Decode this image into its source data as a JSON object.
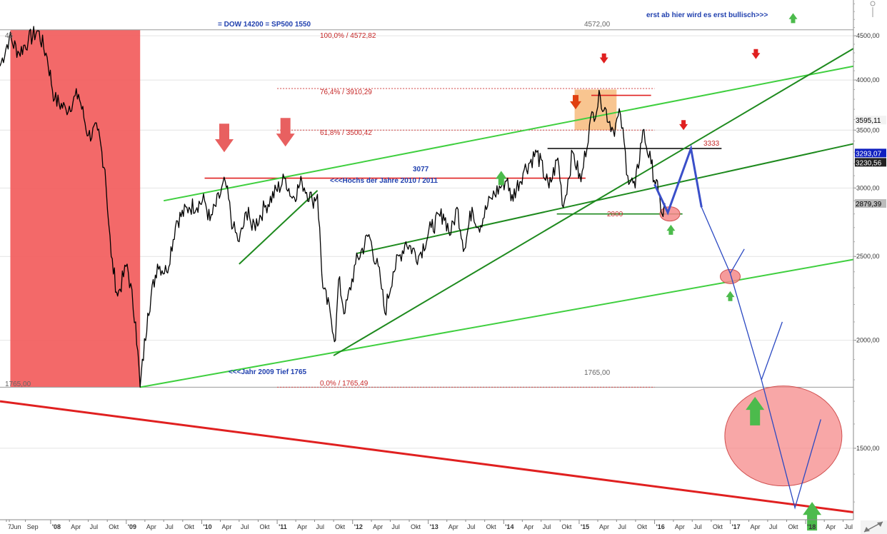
{
  "chart_data": {
    "type": "line",
    "instrument": "",
    "x_axis": {
      "ticks": [
        {
          "label": "7",
          "date": "2007-06-01"
        },
        {
          "label": "Jun",
          "date": "2007-06-15"
        },
        {
          "label": "Sep",
          "date": "2007-09-01"
        },
        {
          "label": "'08",
          "date": "2008-01-01"
        },
        {
          "label": "Apr",
          "date": "2008-04-01"
        },
        {
          "label": "Jul",
          "date": "2008-07-01"
        },
        {
          "label": "Okt",
          "date": "2008-10-01"
        },
        {
          "label": "'09",
          "date": "2009-01-01"
        },
        {
          "label": "Apr",
          "date": "2009-04-01"
        },
        {
          "label": "Jul",
          "date": "2009-07-01"
        },
        {
          "label": "Okt",
          "date": "2009-10-01"
        },
        {
          "label": "'10",
          "date": "2010-01-01"
        },
        {
          "label": "Apr",
          "date": "2010-04-01"
        },
        {
          "label": "Jul",
          "date": "2010-07-01"
        },
        {
          "label": "Okt",
          "date": "2010-10-01"
        },
        {
          "label": "'11",
          "date": "2011-01-01"
        },
        {
          "label": "Apr",
          "date": "2011-04-01"
        },
        {
          "label": "Jul",
          "date": "2011-07-01"
        },
        {
          "label": "Okt",
          "date": "2011-10-01"
        },
        {
          "label": "'12",
          "date": "2012-01-01"
        },
        {
          "label": "Apr",
          "date": "2012-04-01"
        },
        {
          "label": "Jul",
          "date": "2012-07-01"
        },
        {
          "label": "Okt",
          "date": "2012-10-01"
        },
        {
          "label": "'13",
          "date": "2013-01-01"
        },
        {
          "label": "Apr",
          "date": "2013-04-01"
        },
        {
          "label": "Jul",
          "date": "2013-07-01"
        },
        {
          "label": "Okt",
          "date": "2013-10-01"
        },
        {
          "label": "'14",
          "date": "2014-01-01"
        },
        {
          "label": "Apr",
          "date": "2014-04-01"
        },
        {
          "label": "Jul",
          "date": "2014-07-01"
        },
        {
          "label": "Okt",
          "date": "2014-10-01"
        },
        {
          "label": "'15",
          "date": "2015-01-01"
        },
        {
          "label": "Apr",
          "date": "2015-04-01"
        },
        {
          "label": "Jul",
          "date": "2015-07-01"
        },
        {
          "label": "Okt",
          "date": "2015-10-01"
        },
        {
          "label": "'16",
          "date": "2016-01-01"
        },
        {
          "label": "Apr",
          "date": "2016-04-01"
        },
        {
          "label": "Jul",
          "date": "2016-07-01"
        },
        {
          "label": "Okt",
          "date": "2016-10-01"
        },
        {
          "label": "'17",
          "date": "2017-01-01"
        },
        {
          "label": "Apr",
          "date": "2017-04-01"
        },
        {
          "label": "Jul",
          "date": "2017-07-01"
        },
        {
          "label": "Okt",
          "date": "2017-10-01"
        },
        {
          "label": "'18",
          "date": "2018-01-01"
        },
        {
          "label": "Apr",
          "date": "2018-04-01"
        },
        {
          "label": "Jul",
          "date": "2018-07-01"
        }
      ],
      "range": [
        "2007-05-01",
        "2018-08-20"
      ]
    },
    "y_axis": {
      "scale": "log",
      "range": [
        1240,
        4950
      ],
      "ticks": [
        "4500,00",
        "4000,00",
        "3500,00",
        "3000,00",
        "2500,00",
        "2000,00",
        "1500,00"
      ],
      "tick_values": [
        4500,
        4000,
        3500,
        3000,
        2500,
        2000,
        1500
      ]
    },
    "price_boxes": [
      {
        "label": "3595,11",
        "value": 3595,
        "style": "light"
      },
      {
        "label": "3293,07",
        "value": 3293,
        "style": "blue"
      },
      {
        "label": "3230,56",
        "value": 3231,
        "style": "dark"
      },
      {
        "label": "2879,39",
        "value": 2879,
        "style": "gray"
      }
    ],
    "series": [
      {
        "values": [
          [
            "2007-05-01",
            4150
          ],
          [
            "2007-06-15",
            4480
          ],
          [
            "2007-08-01",
            4300
          ],
          [
            "2007-09-15",
            4450
          ],
          [
            "2007-11-01",
            4560
          ],
          [
            "2007-12-15",
            4250
          ],
          [
            "2008-01-20",
            3800
          ],
          [
            "2008-03-15",
            3700
          ],
          [
            "2008-05-15",
            3850
          ],
          [
            "2008-07-01",
            3450
          ],
          [
            "2008-08-15",
            3500
          ],
          [
            "2008-09-20",
            3150
          ],
          [
            "2008-10-20",
            2500
          ],
          [
            "2008-11-20",
            2250
          ],
          [
            "2009-01-05",
            2450
          ],
          [
            "2009-02-15",
            2100
          ],
          [
            "2009-03-09",
            1765
          ],
          [
            "2009-04-15",
            2150
          ],
          [
            "2009-06-01",
            2450
          ],
          [
            "2009-07-15",
            2400
          ],
          [
            "2009-09-01",
            2750
          ],
          [
            "2009-11-01",
            2850
          ],
          [
            "2010-01-15",
            2900
          ],
          [
            "2010-02-10",
            2750
          ],
          [
            "2010-04-25",
            3050
          ],
          [
            "2010-06-01",
            2700
          ],
          [
            "2010-07-01",
            2600
          ],
          [
            "2010-08-15",
            2850
          ],
          [
            "2010-09-01",
            2680
          ],
          [
            "2010-11-01",
            2850
          ],
          [
            "2011-02-10",
            3080
          ],
          [
            "2011-03-15",
            2920
          ],
          [
            "2011-05-01",
            3050
          ],
          [
            "2011-06-20",
            2900
          ],
          [
            "2011-07-15",
            2950
          ],
          [
            "2011-08-10",
            2300
          ],
          [
            "2011-09-15",
            2150
          ],
          [
            "2011-10-10",
            2000
          ],
          [
            "2011-10-25",
            2350
          ],
          [
            "2011-11-25",
            2150
          ],
          [
            "2012-01-15",
            2450
          ],
          [
            "2012-03-20",
            2650
          ],
          [
            "2012-05-15",
            2350
          ],
          [
            "2012-06-05",
            2150
          ],
          [
            "2012-07-15",
            2400
          ],
          [
            "2012-09-15",
            2600
          ],
          [
            "2012-11-15",
            2500
          ],
          [
            "2013-01-15",
            2700
          ],
          [
            "2013-03-15",
            2800
          ],
          [
            "2013-04-20",
            2650
          ],
          [
            "2013-05-20",
            2850
          ],
          [
            "2013-06-25",
            2550
          ],
          [
            "2013-08-01",
            2850
          ],
          [
            "2013-09-01",
            2700
          ],
          [
            "2013-11-01",
            2920
          ],
          [
            "2014-01-20",
            3080
          ],
          [
            "2014-02-05",
            2900
          ],
          [
            "2014-04-10",
            3150
          ],
          [
            "2014-06-10",
            3300
          ],
          [
            "2014-08-08",
            3000
          ],
          [
            "2014-09-20",
            3250
          ],
          [
            "2014-10-16",
            2850
          ],
          [
            "2014-12-01",
            3300
          ],
          [
            "2015-01-10",
            3050
          ],
          [
            "2015-02-20",
            3550
          ],
          [
            "2015-04-13",
            3830
          ],
          [
            "2015-06-15",
            3500
          ],
          [
            "2015-07-20",
            3650
          ],
          [
            "2015-08-24",
            3100
          ],
          [
            "2015-09-29",
            3000
          ],
          [
            "2015-11-05",
            3500
          ],
          [
            "2015-12-15",
            3200
          ],
          [
            "2016-01-20",
            2950
          ],
          [
            "2016-02-11",
            2780
          ],
          [
            "2016-02-20",
            2880
          ]
        ]
      }
    ],
    "annotations": {
      "dow_note": "= DOW 14200 = SP500 1550",
      "bullish_note": "erst ab hier wird es erst bullisch>>>",
      "top_level": "4572,00",
      "top_left_partial": "45",
      "fib_100": "100,0% / 4572,82",
      "fib_764": "76,4% / 3910,29",
      "fib_618": "61,8% / 3500,42",
      "fib_0": "0,0% / 1765,49",
      "level_1765_right": "1765,00",
      "level_1765_left": "1765,00",
      "level_3077": "3077",
      "highs_note": "<<<Hochs der Jahre 2010 / 2011",
      "level_2800": "2800",
      "level_3333": "3333",
      "low_2009_note": "<<<Jahr 2009 Tief 1765"
    },
    "shaded_regions": [
      {
        "from": "2007-06-20",
        "to": "2009-03-09",
        "color": "#f26161"
      },
      {
        "from": "2014-12-10",
        "to": "2015-07-01",
        "y_from": 3500,
        "y_to": 3900,
        "color": "#f6b26b"
      }
    ],
    "trendlines": [
      {
        "color": "#3fcf3f",
        "from": [
          "2009-07-01",
          2900
        ],
        "to": [
          "2018-08-20",
          4150
        ]
      },
      {
        "color": "#3fcf3f",
        "from": [
          "2009-03-09",
          1765
        ],
        "to": [
          "2018-08-20",
          2480
        ]
      },
      {
        "color": "#1e8a1e",
        "from": [
          "2011-10-01",
          1920
        ],
        "to": [
          "2018-08-20",
          4350
        ]
      },
      {
        "color": "#1e8a1e",
        "from": [
          "2012-01-20",
          2520
        ],
        "to": [
          "2018-08-20",
          3375
        ]
      },
      {
        "color": "#1e8a1e",
        "from": [
          "2010-07-01",
          2450
        ],
        "to": [
          "2011-07-15",
          2980
        ]
      },
      {
        "color": "#e02020",
        "from": [
          "2007-05-01",
          1700
        ],
        "to": [
          "2018-08-20",
          1265
        ]
      }
    ],
    "horizontal_levels": [
      {
        "color": "#e02020",
        "value": 3080,
        "from": "2010-01-15",
        "to": "2015-02-01"
      },
      {
        "color": "#000000",
        "value": 3333,
        "from": "2014-08-01",
        "to": "2016-11-20"
      },
      {
        "color": "#1e8a1e",
        "value": 2800,
        "from": "2014-09-15",
        "to": "2016-05-15"
      },
      {
        "color": "#e02020",
        "value": 3840,
        "from": "2015-03-01",
        "to": "2015-12-15"
      }
    ],
    "projection": [
      {
        "color": "#3a4fc9",
        "width": 3,
        "points": [
          [
            "2016-01-01",
            3030
          ],
          [
            "2016-03-05",
            2810
          ],
          [
            "2016-06-25",
            3333
          ],
          [
            "2016-08-15",
            2850
          ]
        ]
      },
      {
        "color": "#2b49c2",
        "width": 1.3,
        "points": [
          [
            "2016-08-15",
            2850
          ],
          [
            "2017-01-01",
            2390
          ],
          [
            "2017-06-01",
            1800
          ],
          [
            "2017-11-10",
            1280
          ],
          [
            "2018-03-15",
            1620
          ]
        ]
      },
      {
        "color": "#2b49c2",
        "width": 1.3,
        "points": [
          [
            "2017-01-01",
            2390
          ],
          [
            "2017-03-10",
            2550
          ]
        ]
      },
      {
        "color": "#2b49c2",
        "width": 1.3,
        "points": [
          [
            "2017-06-01",
            1800
          ],
          [
            "2017-09-10",
            2100
          ]
        ]
      }
    ],
    "arrows": [
      {
        "dir": "down",
        "color": "#e86060",
        "date": "2010-04-20",
        "value": 3300,
        "size": "large"
      },
      {
        "dir": "down",
        "color": "#e86060",
        "date": "2011-02-10",
        "value": 3350,
        "size": "large"
      },
      {
        "dir": "up",
        "color": "#4cbb4c",
        "date": "2013-12-20",
        "value": 3140,
        "size": "medium"
      },
      {
        "dir": "down",
        "color": "#e04010",
        "date": "2014-12-15",
        "value": 3700,
        "size": "medium"
      },
      {
        "dir": "down",
        "color": "#e02020",
        "date": "2015-05-01",
        "value": 4180,
        "size": "small"
      },
      {
        "dir": "down",
        "color": "#e02020",
        "date": "2016-05-20",
        "value": 3500,
        "size": "small"
      },
      {
        "dir": "down",
        "color": "#e02020",
        "date": "2017-05-05",
        "value": 4230,
        "size": "small"
      },
      {
        "dir": "up",
        "color": "#4cbb4c",
        "date": "2016-03-20",
        "value": 2720,
        "size": "small"
      },
      {
        "dir": "up",
        "color": "#4cbb4c",
        "date": "2017-01-01",
        "value": 2280,
        "size": "small"
      },
      {
        "dir": "up",
        "color": "#4cbb4c",
        "date": "2017-05-01",
        "value": 1720,
        "size": "large"
      },
      {
        "dir": "up",
        "color": "#4cbb4c",
        "date": "2018-02-01",
        "value": 1300,
        "size": "large"
      },
      {
        "dir": "up",
        "color": "#4cbb4c",
        "date": "2017-11-01",
        "value": 4780,
        "size": "small"
      }
    ],
    "ellipses": [
      {
        "center": [
          "2016-03-15",
          2800
        ],
        "size": "small"
      },
      {
        "center": [
          "2017-01-01",
          2370
        ],
        "size": "small"
      },
      {
        "center": [
          "2017-09-15",
          1550
        ],
        "size": "large"
      }
    ]
  },
  "colors": {
    "background": "#ffffff",
    "grid": "#cccccc",
    "price": "#000000",
    "red_zone": "#f26161",
    "orange_zone": "#f6b26b",
    "light_green": "#3fcf3f",
    "dark_green": "#1e8a1e",
    "red_line": "#e02020",
    "projection_blue": "#2b49c2",
    "annotation_blue": "#1f3fae"
  }
}
